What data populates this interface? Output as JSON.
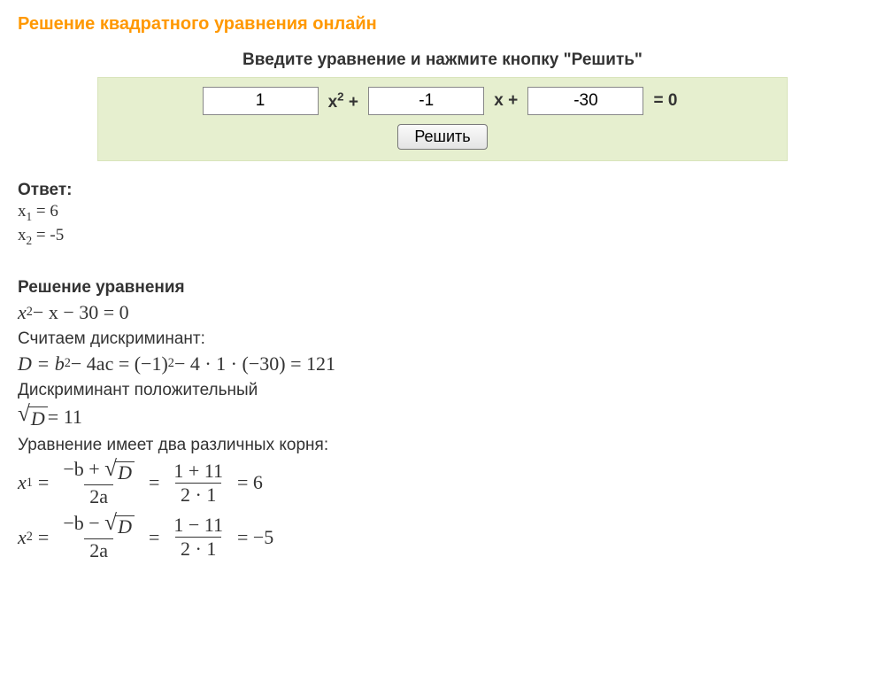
{
  "title": "Решение квадратного уравнения онлайн",
  "instruction": "Введите уравнение и нажмите кнопку \"Решить\"",
  "form": {
    "a_value": "1",
    "b_value": "-1",
    "c_value": "-30",
    "x2_label_pre": "x",
    "x2_exp": "2",
    "plus1": " + ",
    "x_label": "x",
    "plus2": " + ",
    "eq_zero": " = 0",
    "solve_label": "Решить",
    "bg_color": "#e6efcf",
    "border_color": "#d9e4bb"
  },
  "answer": {
    "label": "Ответ:",
    "x1_label": "x",
    "x1_sub": "1",
    "x1_eq": " = 6",
    "x2_label": "x",
    "x2_sub": "2",
    "x2_eq": " = -5"
  },
  "solution": {
    "header": "Решение уравнения",
    "equation_lhs": "x",
    "equation_exp": "2",
    "equation_rest": " − x − 30 = 0",
    "disc_label": "Считаем дискриминант:",
    "D_text": "D = b",
    "D_exp": "2",
    "D_rest": " − 4ac = (−1)",
    "D_exp2": "2",
    "D_tail": " − 4 · 1 · (−30) = 121",
    "disc_positive": "Дискриминант положительный",
    "sqrtD_body": "D",
    "sqrtD_val": " = 11",
    "two_roots": "Уравнение имеет два различных корня:",
    "x1": {
      "sym": "x",
      "sub": "1",
      "eq": " = ",
      "num1a": "−b + ",
      "num1b": "D",
      "den1": "2a",
      "mid_eq": " = ",
      "num2": "1 + 11",
      "den2": "2 · 1",
      "tail": " = 6"
    },
    "x2": {
      "sym": "x",
      "sub": "2",
      "eq": " = ",
      "num1a": "−b − ",
      "num1b": "D",
      "den1": "2a",
      "mid_eq": " = ",
      "num2": "1 − 11",
      "den2": "2 · 1",
      "tail": " = −5"
    }
  },
  "colors": {
    "title": "#ff9800",
    "text": "#333333",
    "background": "#ffffff"
  }
}
